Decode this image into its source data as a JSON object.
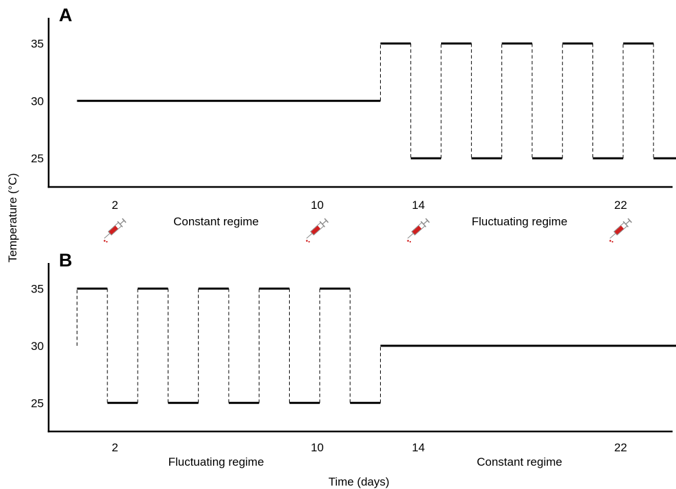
{
  "chart_data": [
    {
      "type": "line",
      "panel_label": "A",
      "ylabel": "Temperature (°C)",
      "xlabel": "Time (days)",
      "yticks": [
        25,
        30,
        35
      ],
      "ylim": [
        22.5,
        37
      ],
      "xticks": [
        2,
        10,
        14,
        22
      ],
      "xlim": [
        0,
        24
      ],
      "segments": [
        {
          "x0": 0.5,
          "x1": 12.5,
          "y": 30,
          "style": "solid"
        },
        {
          "x": 12.5,
          "y0": 30,
          "y1": 35,
          "style": "dashed"
        },
        {
          "x0": 12.5,
          "x1": 13.7,
          "y": 35,
          "style": "solid"
        },
        {
          "x": 13.7,
          "y0": 35,
          "y1": 25,
          "style": "dashed"
        },
        {
          "x0": 13.7,
          "x1": 14.9,
          "y": 25,
          "style": "solid"
        },
        {
          "x": 14.9,
          "y0": 25,
          "y1": 35,
          "style": "dashed"
        },
        {
          "x0": 14.9,
          "x1": 16.1,
          "y": 35,
          "style": "solid"
        },
        {
          "x": 16.1,
          "y0": 35,
          "y1": 25,
          "style": "dashed"
        },
        {
          "x0": 16.1,
          "x1": 17.3,
          "y": 25,
          "style": "solid"
        },
        {
          "x": 17.3,
          "y0": 25,
          "y1": 35,
          "style": "dashed"
        },
        {
          "x0": 17.3,
          "x1": 18.5,
          "y": 35,
          "style": "solid"
        },
        {
          "x": 18.5,
          "y0": 35,
          "y1": 25,
          "style": "dashed"
        },
        {
          "x0": 18.5,
          "x1": 19.7,
          "y": 25,
          "style": "solid"
        },
        {
          "x": 19.7,
          "y0": 25,
          "y1": 35,
          "style": "dashed"
        },
        {
          "x0": 19.7,
          "x1": 20.9,
          "y": 35,
          "style": "solid"
        },
        {
          "x": 20.9,
          "y0": 35,
          "y1": 25,
          "style": "dashed"
        },
        {
          "x0": 20.9,
          "x1": 22.1,
          "y": 25,
          "style": "solid"
        },
        {
          "x": 22.1,
          "y0": 25,
          "y1": 35,
          "style": "dashed"
        },
        {
          "x0": 22.1,
          "x1": 23.3,
          "y": 35,
          "style": "solid"
        },
        {
          "x": 23.3,
          "y0": 35,
          "y1": 25,
          "style": "dashed"
        },
        {
          "x0": 23.3,
          "x1": 24.5,
          "y": 25,
          "style": "solid"
        },
        {
          "x": 24.5,
          "y0": 25,
          "y1": 35,
          "style": "dashed"
        }
      ],
      "regime_labels": [
        {
          "text": "Constant regime",
          "x": 6
        },
        {
          "text": "Fluctuating regime",
          "x": 18
        }
      ],
      "annotation_icons": [
        {
          "icon": "syringe-icon",
          "x": 2
        },
        {
          "icon": "syringe-icon",
          "x": 10
        },
        {
          "icon": "syringe-icon",
          "x": 14
        },
        {
          "icon": "syringe-icon",
          "x": 22
        }
      ]
    },
    {
      "type": "line",
      "panel_label": "B",
      "yticks": [
        25,
        30,
        35
      ],
      "ylim": [
        22.5,
        37
      ],
      "xticks": [
        2,
        10,
        14,
        22
      ],
      "xlim": [
        0,
        24
      ],
      "segments": [
        {
          "x": 0.5,
          "y0": 30,
          "y1": 35,
          "style": "dashed"
        },
        {
          "x0": 0.5,
          "x1": 1.7,
          "y": 35,
          "style": "solid"
        },
        {
          "x": 1.7,
          "y0": 35,
          "y1": 25,
          "style": "dashed"
        },
        {
          "x0": 1.7,
          "x1": 2.9,
          "y": 25,
          "style": "solid"
        },
        {
          "x": 2.9,
          "y0": 25,
          "y1": 35,
          "style": "dashed"
        },
        {
          "x0": 2.9,
          "x1": 4.1,
          "y": 35,
          "style": "solid"
        },
        {
          "x": 4.1,
          "y0": 35,
          "y1": 25,
          "style": "dashed"
        },
        {
          "x0": 4.1,
          "x1": 5.3,
          "y": 25,
          "style": "solid"
        },
        {
          "x": 5.3,
          "y0": 25,
          "y1": 35,
          "style": "dashed"
        },
        {
          "x0": 5.3,
          "x1": 6.5,
          "y": 35,
          "style": "solid"
        },
        {
          "x": 6.5,
          "y0": 35,
          "y1": 25,
          "style": "dashed"
        },
        {
          "x0": 6.5,
          "x1": 7.7,
          "y": 25,
          "style": "solid"
        },
        {
          "x": 7.7,
          "y0": 25,
          "y1": 35,
          "style": "dashed"
        },
        {
          "x0": 7.7,
          "x1": 8.9,
          "y": 35,
          "style": "solid"
        },
        {
          "x": 8.9,
          "y0": 35,
          "y1": 25,
          "style": "dashed"
        },
        {
          "x0": 8.9,
          "x1": 10.1,
          "y": 25,
          "style": "solid"
        },
        {
          "x": 10.1,
          "y0": 25,
          "y1": 35,
          "style": "dashed"
        },
        {
          "x0": 10.1,
          "x1": 11.3,
          "y": 35,
          "style": "solid"
        },
        {
          "x": 11.3,
          "y0": 35,
          "y1": 25,
          "style": "dashed"
        },
        {
          "x0": 11.3,
          "x1": 12.5,
          "y": 25,
          "style": "solid"
        },
        {
          "x": 12.5,
          "y0": 25,
          "y1": 30,
          "style": "dashed"
        },
        {
          "x0": 12.5,
          "x1": 24.5,
          "y": 30,
          "style": "solid"
        }
      ],
      "regime_labels": [
        {
          "text": "Fluctuating regime",
          "x": 6
        },
        {
          "text": "Constant regime",
          "x": 18
        }
      ]
    }
  ],
  "colors": {
    "line": "#000000",
    "syringe_liquid": "#d01f1f",
    "syringe_body": "#8a8a8a"
  }
}
